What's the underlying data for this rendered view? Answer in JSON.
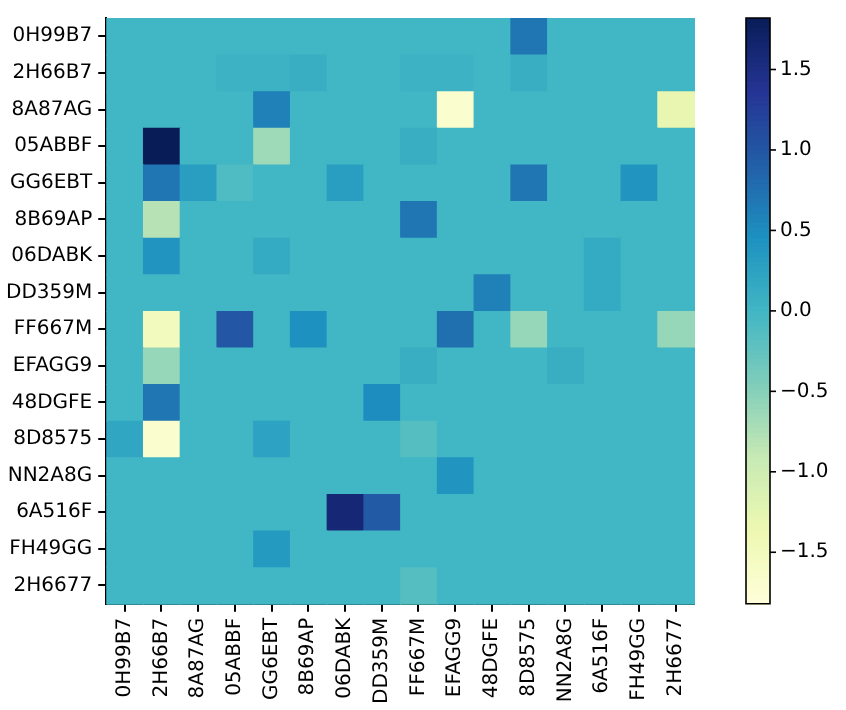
{
  "chart_data": {
    "type": "heatmap",
    "categories": [
      "0H99B7",
      "2H66B7",
      "8A87AG",
      "05ABBF",
      "GG6EBT",
      "8B69AP",
      "06DABK",
      "DD359M",
      "FF667M",
      "EFAGG9",
      "48DGFE",
      "8D8575",
      "NN2A8G",
      "6A516F",
      "FH49GG",
      "2H6677"
    ],
    "y_categories": [
      "0H99B7",
      "2H66B7",
      "8A87AG",
      "05ABBF",
      "GG6EBT",
      "8B69AP",
      "06DABK",
      "DD359M",
      "FF667M",
      "EFAGG9",
      "48DGFE",
      "8D8575",
      "NN2A8G",
      "6A516F",
      "FH49GG",
      "2H6677"
    ],
    "cells": [
      [
        0,
        0,
        0,
        0,
        0,
        0,
        0,
        0,
        0,
        0,
        0,
        0.7,
        0,
        0,
        0,
        0
      ],
      [
        0,
        0,
        0,
        0.05,
        0.05,
        0.1,
        0,
        0,
        0.05,
        0.05,
        0,
        0.1,
        0,
        0,
        0,
        0
      ],
      [
        0,
        0,
        0,
        0,
        0.6,
        0,
        0,
        0,
        0,
        -1.7,
        0,
        0,
        0,
        0,
        0,
        -1.3
      ],
      [
        0,
        1.82,
        0,
        0,
        -0.65,
        0,
        0,
        0,
        0.1,
        0,
        0,
        0,
        0,
        0,
        0,
        0
      ],
      [
        0,
        0.7,
        0.3,
        -0.1,
        0,
        0,
        0.3,
        0,
        0,
        0,
        0,
        0.7,
        0,
        0,
        0.4,
        0
      ],
      [
        0,
        -0.8,
        0,
        0,
        0,
        0,
        0,
        0,
        0.7,
        0,
        0,
        0,
        0,
        0,
        0,
        0
      ],
      [
        0,
        0.4,
        0,
        0,
        0.15,
        0,
        0,
        0,
        0,
        0,
        0,
        0,
        0,
        0.15,
        0,
        0
      ],
      [
        0,
        0,
        0,
        0,
        0,
        0,
        0,
        0,
        0,
        0,
        0.6,
        0,
        0,
        0.15,
        0,
        0
      ],
      [
        0,
        -1.5,
        0,
        1.0,
        0,
        0.45,
        0,
        0,
        0,
        0.75,
        0,
        -0.6,
        0,
        0,
        0,
        -0.6
      ],
      [
        0,
        -0.6,
        0,
        0,
        0,
        0,
        0,
        0,
        0.1,
        0,
        0,
        0,
        0.1,
        0,
        0,
        0
      ],
      [
        0,
        0.7,
        0,
        0,
        0,
        0,
        0,
        0.5,
        0,
        0,
        0,
        0,
        0,
        0,
        0,
        0
      ],
      [
        0.2,
        -1.7,
        0,
        0,
        0.25,
        0,
        0,
        0,
        -0.15,
        0,
        0,
        0,
        0,
        0,
        0,
        0
      ],
      [
        0,
        0,
        0,
        0,
        0,
        0,
        0,
        0,
        0,
        0.4,
        0,
        0,
        0,
        0,
        0,
        0
      ],
      [
        0,
        0,
        0,
        0,
        0,
        0,
        1.6,
        0.95,
        0,
        0,
        0,
        0,
        0,
        0,
        0,
        0
      ],
      [
        0,
        0,
        0,
        0,
        0.35,
        0,
        0,
        0,
        0,
        0,
        0,
        0,
        0,
        0,
        0,
        0
      ],
      [
        0,
        0,
        0,
        0,
        0,
        0,
        0,
        0,
        -0.15,
        0,
        0,
        0,
        0,
        0,
        0,
        0
      ]
    ],
    "clim": [
      -1.82,
      1.82
    ],
    "cticks": [
      {
        "value": -1.5,
        "label": "−1.5"
      },
      {
        "value": -1.0,
        "label": "−1.0"
      },
      {
        "value": -0.5,
        "label": "−0.5"
      },
      {
        "value": 0.0,
        "label": "0.0"
      },
      {
        "value": 0.5,
        "label": "0.5"
      },
      {
        "value": 1.0,
        "label": "1.0"
      },
      {
        "value": 1.5,
        "label": "1.5"
      }
    ]
  }
}
